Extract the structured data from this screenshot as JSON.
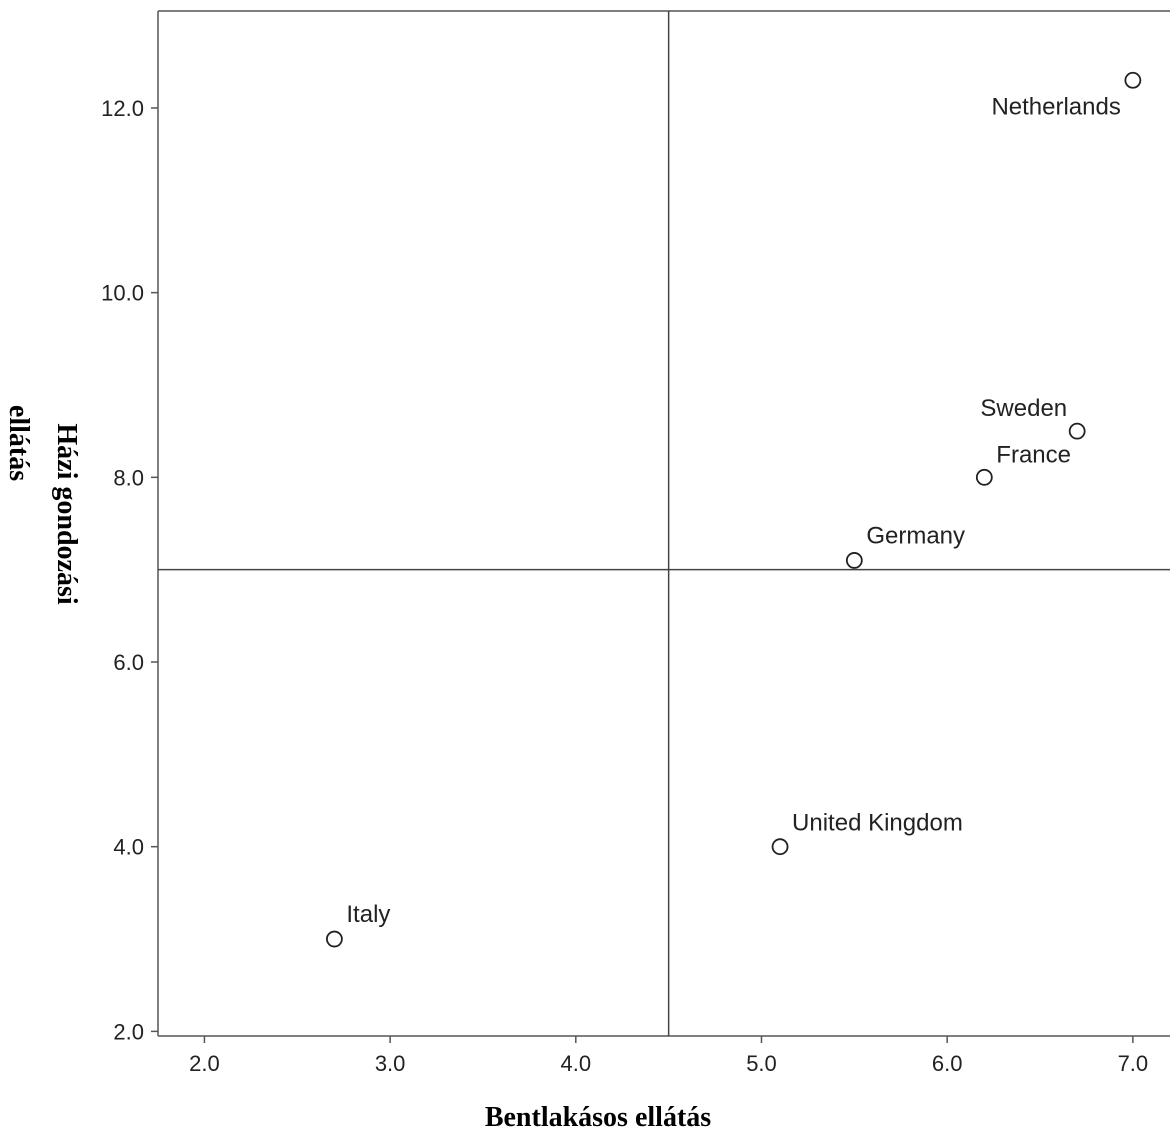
{
  "chart_data": {
    "type": "scatter",
    "title": "",
    "xlabel": "Bentlakásos ellátás",
    "ylabel_lines": [
      "Házi gondozási",
      "ellátás"
    ],
    "xlim": [
      1.75,
      7.2
    ],
    "ylim": [
      1.95,
      13.05
    ],
    "xticks": [
      2.0,
      3.0,
      4.0,
      5.0,
      6.0,
      7.0
    ],
    "xtick_labels": [
      "2.0",
      "3.0",
      "4.0",
      "5.0",
      "6.0",
      "7.0"
    ],
    "yticks": [
      2.0,
      4.0,
      6.0,
      8.0,
      10.0,
      12.0
    ],
    "ytick_labels": [
      "2.0",
      "4.0",
      "6.0",
      "8.0",
      "10.0",
      "12.0"
    ],
    "reference_lines": {
      "x": 4.5,
      "y": 7.0
    },
    "grid": false,
    "points": [
      {
        "label": "Netherlands",
        "x": 7.0,
        "y": 12.3
      },
      {
        "label": "Sweden",
        "x": 6.7,
        "y": 8.5
      },
      {
        "label": "France",
        "x": 6.2,
        "y": 8.0
      },
      {
        "label": "Germany",
        "x": 5.5,
        "y": 7.1
      },
      {
        "label": "United Kingdom",
        "x": 5.1,
        "y": 4.0
      },
      {
        "label": "Italy",
        "x": 2.7,
        "y": 3.0
      }
    ]
  }
}
